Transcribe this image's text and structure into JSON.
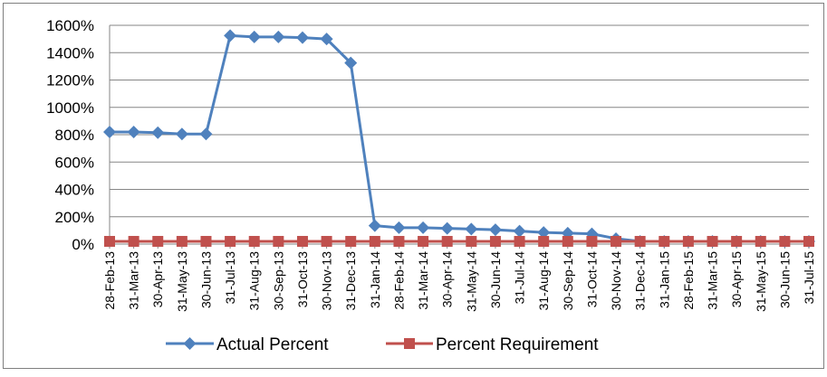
{
  "chart_data": {
    "type": "line",
    "title": "",
    "xlabel": "",
    "ylabel": "",
    "ylim": [
      0,
      1600
    ],
    "y_ticks": [
      0,
      200,
      400,
      600,
      800,
      1000,
      1200,
      1400,
      1600
    ],
    "y_tick_labels": [
      "0%",
      "200%",
      "400%",
      "600%",
      "800%",
      "1000%",
      "1200%",
      "1400%",
      "1600%"
    ],
    "grid": "horizontal",
    "legend_position": "bottom",
    "categories": [
      "28-Feb-13",
      "31-Mar-13",
      "30-Apr-13",
      "31-May-13",
      "30-Jun-13",
      "31-Jul-13",
      "31-Aug-13",
      "30-Sep-13",
      "31-Oct-13",
      "30-Nov-13",
      "31-Dec-13",
      "31-Jan-14",
      "28-Feb-14",
      "31-Mar-14",
      "30-Apr-14",
      "31-May-14",
      "30-Jun-14",
      "31-Jul-14",
      "31-Aug-14",
      "30-Sep-14",
      "31-Oct-14",
      "30-Nov-14",
      "31-Dec-14",
      "31-Jan-15",
      "28-Feb-15",
      "31-Mar-15",
      "30-Apr-15",
      "31-May-15",
      "30-Jun-15",
      "31-Jul-15"
    ],
    "series": [
      {
        "name": "Actual Percent",
        "color": "#4F81BD",
        "marker": "diamond",
        "values": [
          820,
          820,
          815,
          805,
          805,
          1525,
          1515,
          1515,
          1510,
          1500,
          1325,
          135,
          120,
          120,
          115,
          110,
          105,
          95,
          85,
          80,
          75,
          40,
          20,
          20,
          20,
          20,
          20,
          20,
          20,
          20
        ]
      },
      {
        "name": "Percent Requirement",
        "color": "#C0504D",
        "marker": "square",
        "values": [
          20,
          20,
          20,
          20,
          20,
          20,
          20,
          20,
          20,
          20,
          20,
          20,
          20,
          20,
          20,
          20,
          20,
          20,
          20,
          20,
          20,
          20,
          20,
          20,
          20,
          20,
          20,
          20,
          20,
          20
        ]
      }
    ]
  }
}
